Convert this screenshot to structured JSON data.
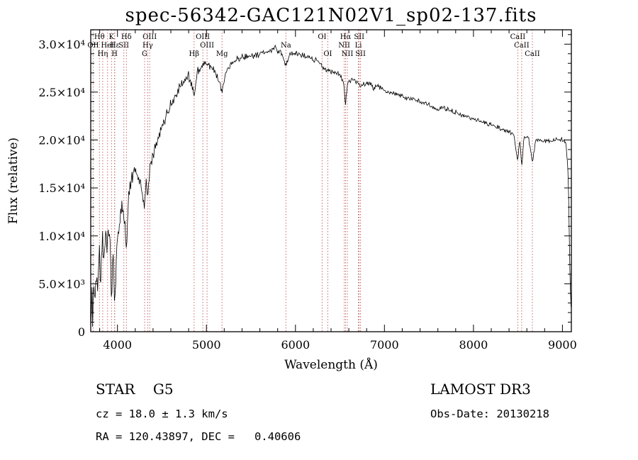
{
  "chart_data": {
    "type": "line",
    "title": "spec-56342-GAC121N02V1_sp02-137.fits",
    "xlabel": "Wavelength (Å)",
    "ylabel": "Flux (relative)",
    "xlim": [
      3700,
      9100
    ],
    "ylim": [
      0,
      31500
    ],
    "grid": false,
    "x_ticks": [
      4000,
      5000,
      6000,
      7000,
      8000,
      9000
    ],
    "x_minor_step": 200,
    "y_minor_step": 1000,
    "y_ticks": [
      {
        "value": 0,
        "label": "0"
      },
      {
        "value": 5000,
        "label": "5.0×10³"
      },
      {
        "value": 10000,
        "label": "1.0×10⁴"
      },
      {
        "value": 15000,
        "label": "1.5×10⁴"
      },
      {
        "value": 20000,
        "label": "2.0×10⁴"
      },
      {
        "value": 25000,
        "label": "2.5×10⁴"
      },
      {
        "value": 30000,
        "label": "3.0×10⁴"
      }
    ],
    "colors": {
      "spectrum": "#000000",
      "marker": "#c46a6a",
      "marker_label": "#5a1616",
      "frame": "#000000"
    },
    "series": [
      {
        "name": "flux",
        "control_points": [
          [
            3700,
            800
          ],
          [
            3712,
            4200
          ],
          [
            3722,
            1100
          ],
          [
            3735,
            5200
          ],
          [
            3748,
            2600
          ],
          [
            3762,
            6800
          ],
          [
            3778,
            4200
          ],
          [
            3795,
            8200
          ],
          [
            3812,
            6000
          ],
          [
            3828,
            9600
          ],
          [
            3845,
            7200
          ],
          [
            3862,
            10300
          ],
          [
            3880,
            8300
          ],
          [
            3900,
            10800
          ],
          [
            3918,
            9200
          ],
          [
            3933,
            2600
          ],
          [
            3950,
            8200
          ],
          [
            3968,
            2100
          ],
          [
            3984,
            7000
          ],
          [
            4000,
            9500
          ],
          [
            4025,
            11500
          ],
          [
            4055,
            12800
          ],
          [
            4080,
            11800
          ],
          [
            4101,
            8300
          ],
          [
            4125,
            13800
          ],
          [
            4160,
            16200
          ],
          [
            4200,
            17200
          ],
          [
            4235,
            16200
          ],
          [
            4270,
            15400
          ],
          [
            4305,
            13000
          ],
          [
            4322,
            15300
          ],
          [
            4340,
            14400
          ],
          [
            4362,
            16600
          ],
          [
            4400,
            18600
          ],
          [
            4450,
            20200
          ],
          [
            4500,
            21600
          ],
          [
            4550,
            22600
          ],
          [
            4600,
            23600
          ],
          [
            4650,
            24600
          ],
          [
            4700,
            25500
          ],
          [
            4750,
            26100
          ],
          [
            4800,
            26800
          ],
          [
            4861,
            24700
          ],
          [
            4900,
            27200
          ],
          [
            4945,
            27800
          ],
          [
            5000,
            28000
          ],
          [
            5050,
            27600
          ],
          [
            5100,
            27100
          ],
          [
            5175,
            25100
          ],
          [
            5220,
            27100
          ],
          [
            5270,
            27900
          ],
          [
            5330,
            28300
          ],
          [
            5400,
            28600
          ],
          [
            5500,
            28800
          ],
          [
            5600,
            29000
          ],
          [
            5700,
            29300
          ],
          [
            5780,
            29600
          ],
          [
            5845,
            29100
          ],
          [
            5893,
            27700
          ],
          [
            5940,
            29000
          ],
          [
            6000,
            29200
          ],
          [
            6080,
            28900
          ],
          [
            6160,
            28600
          ],
          [
            6250,
            28200
          ],
          [
            6300,
            27600
          ],
          [
            6363,
            27300
          ],
          [
            6450,
            27000
          ],
          [
            6505,
            26700
          ],
          [
            6540,
            26100
          ],
          [
            6563,
            23700
          ],
          [
            6588,
            26000
          ],
          [
            6650,
            26400
          ],
          [
            6707,
            26000
          ],
          [
            6731,
            25700
          ],
          [
            6800,
            26000
          ],
          [
            6860,
            25800
          ],
          [
            6875,
            25200
          ],
          [
            6900,
            25700
          ],
          [
            7000,
            25200
          ],
          [
            7100,
            24900
          ],
          [
            7200,
            24600
          ],
          [
            7300,
            24300
          ],
          [
            7400,
            24000
          ],
          [
            7500,
            23700
          ],
          [
            7600,
            23100
          ],
          [
            7660,
            23400
          ],
          [
            7750,
            23100
          ],
          [
            7850,
            22700
          ],
          [
            7950,
            22400
          ],
          [
            8050,
            22000
          ],
          [
            8150,
            21700
          ],
          [
            8250,
            21400
          ],
          [
            8350,
            21000
          ],
          [
            8450,
            20700
          ],
          [
            8498,
            17700
          ],
          [
            8520,
            20400
          ],
          [
            8542,
            17100
          ],
          [
            8568,
            20300
          ],
          [
            8620,
            20200
          ],
          [
            8662,
            17500
          ],
          [
            8700,
            20100
          ],
          [
            8760,
            20000
          ],
          [
            8820,
            19900
          ],
          [
            8880,
            19900
          ],
          [
            8940,
            20000
          ],
          [
            9000,
            20100
          ],
          [
            9040,
            19600
          ],
          [
            9065,
            16500
          ],
          [
            9085,
            5500
          ],
          [
            9100,
            1800
          ]
        ]
      }
    ],
    "noise": {
      "seed": 56342,
      "step": 7,
      "amplitude_points": [
        [
          3700,
          2000
        ],
        [
          3950,
          1700
        ],
        [
          4100,
          1300
        ],
        [
          4300,
          950
        ],
        [
          4600,
          750
        ],
        [
          5000,
          560
        ],
        [
          5400,
          460
        ],
        [
          5800,
          400
        ],
        [
          6200,
          370
        ],
        [
          6600,
          340
        ],
        [
          7000,
          310
        ],
        [
          7600,
          290
        ],
        [
          8200,
          280
        ],
        [
          8700,
          300
        ],
        [
          9000,
          310
        ],
        [
          9100,
          250
        ]
      ]
    },
    "spectral_lines": [
      {
        "wavelength": 3727,
        "label": "OII",
        "row": 1
      },
      {
        "wavelength": 3798,
        "label": "Hθ",
        "row": 0
      },
      {
        "wavelength": 3835,
        "label": "Hη",
        "row": 2
      },
      {
        "wavelength": 3889,
        "label": "HeI",
        "row": 1
      },
      {
        "wavelength": 3933,
        "label": "K",
        "row": 0
      },
      {
        "wavelength": 3968,
        "label": "H",
        "row": 2
      },
      {
        "wavelength": 3970,
        "label": "Hε",
        "row": 1
      },
      {
        "wavelength": 4072,
        "label": "SII",
        "row": 1
      },
      {
        "wavelength": 4101,
        "label": "Hδ",
        "row": 0
      },
      {
        "wavelength": 4305,
        "label": "G",
        "row": 2
      },
      {
        "wavelength": 4340,
        "label": "Hγ",
        "row": 1
      },
      {
        "wavelength": 4363,
        "label": "OIII",
        "row": 0
      },
      {
        "wavelength": 4861,
        "label": "Hβ",
        "row": 2
      },
      {
        "wavelength": 4959,
        "label": "OIII",
        "row": 0
      },
      {
        "wavelength": 5007,
        "label": "OIII",
        "row": 1
      },
      {
        "wavelength": 5175,
        "label": "Mg",
        "row": 2
      },
      {
        "wavelength": 5893,
        "label": "Na",
        "row": 1
      },
      {
        "wavelength": 6300,
        "label": "OI",
        "row": 0
      },
      {
        "wavelength": 6363,
        "label": "OI",
        "row": 2
      },
      {
        "wavelength": 6548,
        "label": "NII",
        "row": 1
      },
      {
        "wavelength": 6563,
        "label": "Hα",
        "row": 0
      },
      {
        "wavelength": 6583,
        "label": "NII",
        "row": 2
      },
      {
        "wavelength": 6707,
        "label": "Li",
        "row": 1
      },
      {
        "wavelength": 6716,
        "label": "SII",
        "row": 0
      },
      {
        "wavelength": 6731,
        "label": "SII",
        "row": 2
      },
      {
        "wavelength": 8498,
        "label": "CaII",
        "row": 0
      },
      {
        "wavelength": 8542,
        "label": "CaII",
        "row": 1
      },
      {
        "wavelength": 8662,
        "label": "CaII",
        "row": 2
      }
    ]
  },
  "footer": {
    "object_line": "STAR    G5",
    "survey": "LAMOST DR3",
    "cz": "cz = 18.0 ± 1.3 km/s",
    "obs_date": "Obs-Date: 20130218",
    "coords": "RA = 120.43897, DEC =   0.40606"
  }
}
